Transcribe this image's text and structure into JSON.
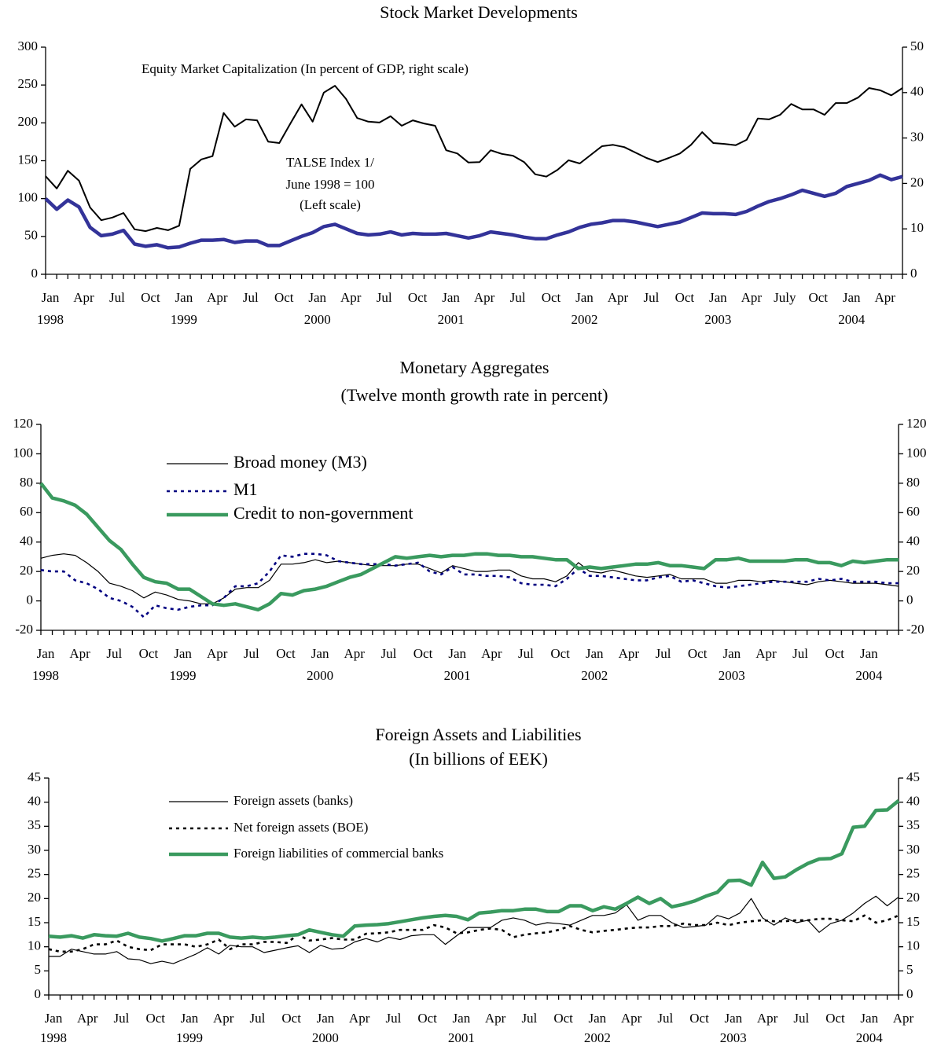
{
  "chart_data": [
    {
      "type": "line",
      "title": "Stock Market Developments",
      "annotations": [
        "Equity Market Capitalization (In percent of GDP, right scale)",
        "TALSE Index  1/",
        "June 1998 = 100",
        "(Left scale)"
      ],
      "categories": [
        "Jan",
        null,
        null,
        "Apr",
        null,
        null,
        "Jul",
        null,
        null,
        "Oct",
        null,
        null,
        "Jan",
        null,
        null,
        "Apr",
        null,
        null,
        "Jul",
        null,
        null,
        "Oct",
        null,
        null,
        "Jan",
        null,
        null,
        "Apr",
        null,
        null,
        "Jul",
        null,
        null,
        "Oct",
        null,
        null,
        "Jan",
        null,
        null,
        "Apr",
        null,
        null,
        "Jul",
        null,
        null,
        "Oct",
        null,
        null,
        "Jan",
        null,
        null,
        "Apr",
        null,
        null,
        "Jul",
        null,
        null,
        "Oct",
        null,
        null,
        "Jan",
        null,
        null,
        "Apr",
        null,
        null,
        "July",
        null,
        null,
        "Oct",
        null,
        null,
        "Jan",
        null,
        null,
        "Apr",
        null,
        null
      ],
      "category_years": [
        "1998",
        null,
        null,
        null,
        null,
        null,
        null,
        null,
        null,
        null,
        null,
        null,
        "1999",
        null,
        null,
        null,
        null,
        null,
        null,
        null,
        null,
        null,
        null,
        null,
        "2000",
        null,
        null,
        null,
        null,
        null,
        null,
        null,
        null,
        null,
        null,
        null,
        "2001",
        null,
        null,
        null,
        null,
        null,
        null,
        null,
        null,
        null,
        null,
        null,
        "2002",
        null,
        null,
        null,
        null,
        null,
        null,
        null,
        null,
        null,
        null,
        null,
        "2003",
        null,
        null,
        null,
        null,
        null,
        null,
        null,
        null,
        null,
        null,
        null,
        "2004",
        null,
        null,
        null,
        null,
        null
      ],
      "series": [
        {
          "color": "#000000",
          "style": "medium",
          "axis": "y2",
          "values": [
            21.6,
            18.9,
            22.8,
            20.6,
            14.7,
            11.9,
            12.5,
            13.5,
            9.9,
            9.5,
            10.2,
            9.7,
            10.7,
            23.2,
            25.3,
            26,
            35.5,
            32.5,
            34.1,
            33.9,
            29.2,
            28.9,
            33.2,
            37.4,
            33.6,
            40,
            41.5,
            38.6,
            34.4,
            33.6,
            33.4,
            34.8,
            32.7,
            33.9,
            33.2,
            32.7,
            27.3,
            26.6,
            24.6,
            24.7,
            27.3,
            26.5,
            26.1,
            24.7,
            22,
            21.5,
            23,
            25.1,
            24.4,
            26.3,
            28.2,
            28.5,
            28,
            26.8,
            25.6,
            24.7,
            25.6,
            26.6,
            28.5,
            31.3,
            28.9,
            28.7,
            28.4,
            29.6,
            34.3,
            34.1,
            35.1,
            37.5,
            36.3,
            36.3,
            35.1,
            37.7,
            37.7,
            38.9,
            41,
            40.5,
            39.4,
            41
          ]
        },
        {
          "color": "#333399",
          "style": "thick",
          "values": [
            100,
            86,
            98,
            89,
            62,
            51,
            53,
            58,
            40,
            37,
            39,
            35,
            36,
            41,
            45,
            45,
            46,
            42,
            44,
            44,
            38,
            38,
            44,
            50,
            55,
            63,
            66,
            60,
            54,
            52,
            53,
            56,
            52,
            54,
            53,
            53,
            54,
            51,
            48,
            51,
            56,
            54,
            52,
            49,
            47,
            47,
            52,
            56,
            62,
            66,
            68,
            71,
            71,
            69,
            66,
            63,
            66,
            69,
            75,
            81,
            80,
            80,
            79,
            83,
            90,
            96,
            100,
            105,
            111,
            107,
            103,
            107,
            116,
            120,
            124,
            131,
            125,
            129
          ]
        }
      ],
      "ylim": [
        0,
        300
      ],
      "yticks": [
        0,
        50,
        100,
        150,
        200,
        250,
        300
      ],
      "y2lim": [
        0,
        50
      ],
      "y2ticks": [
        0,
        10,
        20,
        30,
        40,
        50
      ],
      "grid": false
    },
    {
      "type": "line",
      "title": "Monetary Aggregates",
      "subtitle": "(Twelve month growth rate in percent)",
      "categories": [
        "Jan",
        null,
        null,
        "Apr",
        null,
        null,
        "Jul",
        null,
        null,
        "Oct",
        null,
        null,
        "Jan",
        null,
        null,
        "Apr",
        null,
        null,
        "Jul",
        null,
        null,
        "Oct",
        null,
        null,
        "Jan",
        null,
        null,
        "Apr",
        null,
        null,
        "Jul",
        null,
        null,
        "Oct",
        null,
        null,
        "Jan",
        null,
        null,
        "Apr",
        null,
        null,
        "Jul",
        null,
        null,
        "Oct",
        null,
        null,
        "Jan",
        null,
        null,
        "Apr",
        null,
        null,
        "Jul",
        null,
        null,
        "Oct",
        null,
        null,
        "Jan",
        null,
        null,
        "Apr",
        null,
        null,
        "Jul",
        null,
        null,
        "Oct",
        null,
        null,
        "Jan",
        null,
        null,
        null
      ],
      "category_years": [
        "1998",
        null,
        null,
        null,
        null,
        null,
        null,
        null,
        null,
        null,
        null,
        null,
        "1999",
        null,
        null,
        null,
        null,
        null,
        null,
        null,
        null,
        null,
        null,
        null,
        "2000",
        null,
        null,
        null,
        null,
        null,
        null,
        null,
        null,
        null,
        null,
        null,
        "2001",
        null,
        null,
        null,
        null,
        null,
        null,
        null,
        null,
        null,
        null,
        null,
        "2002",
        null,
        null,
        null,
        null,
        null,
        null,
        null,
        null,
        null,
        null,
        null,
        "2003",
        null,
        null,
        null,
        null,
        null,
        null,
        null,
        null,
        null,
        null,
        null,
        "2004",
        null,
        null,
        null
      ],
      "series": [
        {
          "name": "Broad money (M3)",
          "color": "#000000",
          "style": "thin",
          "values": [
            29,
            31,
            32,
            31,
            26,
            20,
            12,
            10,
            7,
            2,
            6,
            4,
            1,
            0,
            -2,
            -2,
            2,
            8,
            9,
            9,
            14,
            25,
            25,
            26,
            28,
            26,
            27,
            26,
            25,
            24,
            24,
            24,
            25,
            25,
            22,
            19,
            24,
            22,
            20,
            20,
            21,
            21,
            17,
            15,
            15,
            13,
            17,
            26,
            20,
            19,
            21,
            19,
            17,
            16,
            17,
            18,
            15,
            15,
            15,
            12,
            12,
            14,
            14,
            13,
            14,
            13,
            12,
            11,
            13,
            14,
            13,
            12,
            12,
            12,
            11,
            10
          ]
        },
        {
          "name": "M1",
          "color": "#000080",
          "style": "dotted",
          "values": [
            21,
            20,
            20,
            14,
            12,
            8,
            2,
            0,
            -4,
            -11,
            -3,
            -5,
            -6,
            -4,
            -3,
            -3,
            2,
            10,
            10,
            12,
            20,
            31,
            30,
            32,
            32,
            31,
            27,
            26,
            25,
            25,
            25,
            24,
            25,
            26,
            20,
            18,
            23,
            18,
            18,
            17,
            17,
            16,
            12,
            11,
            11,
            10,
            15,
            22,
            17,
            17,
            16,
            15,
            14,
            14,
            16,
            17,
            13,
            14,
            12,
            10,
            9,
            10,
            11,
            12,
            13,
            13,
            13,
            13,
            15,
            14,
            15,
            13,
            13,
            13,
            12,
            12
          ]
        },
        {
          "name": "Credit to non-government",
          "color": "#3a9a5f",
          "style": "thick",
          "values": [
            80,
            70,
            68,
            65,
            59,
            50,
            41,
            35,
            25,
            16,
            13,
            12,
            8,
            8,
            3,
            -2,
            -3,
            -2,
            -4,
            -6,
            -2,
            5,
            4,
            7,
            8,
            10,
            13,
            16,
            18,
            22,
            26,
            30,
            29,
            30,
            31,
            30,
            31,
            31,
            32,
            32,
            31,
            31,
            30,
            30,
            29,
            28,
            28,
            22,
            23,
            22,
            23,
            24,
            25,
            25,
            26,
            24,
            24,
            23,
            22,
            28,
            28,
            29,
            27,
            27,
            27,
            27,
            28,
            28,
            26,
            26,
            24,
            27,
            26,
            27,
            28,
            28
          ]
        }
      ],
      "ylim": [
        -20,
        120
      ],
      "yticks": [
        -20,
        0,
        20,
        40,
        60,
        80,
        100,
        120
      ],
      "y2lim": [
        -20,
        120
      ],
      "y2ticks": [
        -20,
        0,
        20,
        40,
        60,
        80,
        100,
        120
      ],
      "grid": false
    },
    {
      "type": "line",
      "title": "Foreign Assets and Liabilities",
      "subtitle": "(In billions of EEK)",
      "categories": [
        "Jan",
        null,
        null,
        "Apr",
        null,
        null,
        "Jul",
        null,
        null,
        "Oct",
        null,
        null,
        "Jan",
        null,
        null,
        "Apr",
        null,
        null,
        "Jul",
        null,
        null,
        "Oct",
        null,
        null,
        "Jan",
        null,
        null,
        "Apr",
        null,
        null,
        "Jul",
        null,
        null,
        "Oct",
        null,
        null,
        "Jan",
        null,
        null,
        "Apr",
        null,
        null,
        "Jul",
        null,
        null,
        "Oct",
        null,
        null,
        "Jan",
        null,
        null,
        "Apr",
        null,
        null,
        "Jul",
        null,
        null,
        "Oct",
        null,
        null,
        "Jan",
        null,
        null,
        "Apr",
        null,
        null,
        "Jul",
        null,
        null,
        "Oct",
        null,
        null,
        "Jan",
        null,
        null,
        "Apr"
      ],
      "category_years": [
        "1998",
        null,
        null,
        null,
        null,
        null,
        null,
        null,
        null,
        null,
        null,
        null,
        "1999",
        null,
        null,
        null,
        null,
        null,
        null,
        null,
        null,
        null,
        null,
        null,
        "2000",
        null,
        null,
        null,
        null,
        null,
        null,
        null,
        null,
        null,
        null,
        null,
        "2001",
        null,
        null,
        null,
        null,
        null,
        null,
        null,
        null,
        null,
        null,
        null,
        "2002",
        null,
        null,
        null,
        null,
        null,
        null,
        null,
        null,
        null,
        null,
        null,
        "2003",
        null,
        null,
        null,
        null,
        null,
        null,
        null,
        null,
        null,
        null,
        null,
        "2004",
        null,
        null,
        null
      ],
      "series": [
        {
          "name": "Foreign assets (banks)",
          "color": "#000000",
          "style": "thin",
          "values": [
            8,
            8,
            9.5,
            9,
            8.5,
            8.5,
            9,
            7.5,
            7.3,
            6.5,
            7,
            6.5,
            7.5,
            8.5,
            9.8,
            8.5,
            10.3,
            10,
            10,
            8.8,
            9.3,
            9.8,
            10.2,
            8.8,
            10.3,
            9.5,
            9.7,
            11,
            11.7,
            11,
            12,
            11.5,
            12.3,
            12.5,
            12.5,
            10.5,
            12.3,
            14,
            14,
            14,
            15.5,
            16,
            15.5,
            14.5,
            15,
            14.8,
            14.5,
            15.5,
            16.5,
            16.5,
            17,
            18.7,
            15.5,
            16.5,
            16.5,
            15,
            14,
            14.2,
            14.5,
            16.5,
            15.8,
            17,
            20,
            16,
            14.5,
            16,
            15,
            15.5,
            13,
            14.8,
            15.5,
            17,
            19,
            20.5,
            18.5,
            20.3
          ]
        },
        {
          "name": "Net foreign assets (BOE)",
          "color": "#000000",
          "style": "dotted",
          "values": [
            9.5,
            9,
            9,
            9.5,
            10.5,
            10.5,
            11.3,
            10,
            9.5,
            9.3,
            10.5,
            10.5,
            10.5,
            10,
            10.5,
            11.5,
            9.5,
            10.5,
            10.5,
            11,
            11,
            10.8,
            12.5,
            11.3,
            11.5,
            11.8,
            11.5,
            11.5,
            12.7,
            12.8,
            13,
            13.5,
            13.5,
            13.5,
            14.5,
            14,
            12.8,
            13,
            13.5,
            13.8,
            13.5,
            12,
            12.5,
            12.8,
            13,
            13.5,
            14.3,
            13.5,
            13,
            13.3,
            13.5,
            13.8,
            14,
            14,
            14.3,
            14.3,
            14.8,
            14.5,
            14.5,
            15,
            14.5,
            15,
            15.3,
            15.5,
            15.3,
            15.3,
            15.5,
            15.5,
            15.8,
            15.8,
            15.5,
            15.3,
            16.5,
            15,
            15.5,
            16.5
          ]
        },
        {
          "name": "Foreign liabilities of commercial banks",
          "color": "#3a9a5f",
          "style": "thick",
          "values": [
            12.2,
            12,
            12.3,
            11.8,
            12.5,
            12.3,
            12.2,
            12.8,
            12,
            11.7,
            11.2,
            11.7,
            12.3,
            12.3,
            12.8,
            12.8,
            12,
            11.8,
            12,
            11.8,
            12,
            12.3,
            12.5,
            13.5,
            13,
            12.5,
            12.2,
            14.3,
            14.5,
            14.6,
            14.8,
            15.2,
            15.6,
            16,
            16.3,
            16.5,
            16.3,
            15.6,
            17,
            17.2,
            17.5,
            17.5,
            17.8,
            17.8,
            17.3,
            17.3,
            18.5,
            18.5,
            17.5,
            18.3,
            17.8,
            19,
            20.3,
            19,
            20,
            18.3,
            18.8,
            19.5,
            20.5,
            21.3,
            23.7,
            23.8,
            22.8,
            27.5,
            24.2,
            24.5,
            26,
            27.3,
            28.2,
            28.3,
            29.3,
            34.8,
            35,
            38.3,
            38.4,
            40.3
          ]
        }
      ],
      "ylim": [
        0,
        45
      ],
      "yticks": [
        0,
        5,
        10,
        15,
        20,
        25,
        30,
        35,
        40,
        45
      ],
      "y2lim": [
        0,
        45
      ],
      "y2ticks": [
        0,
        5,
        10,
        15,
        20,
        25,
        30,
        35,
        40,
        45
      ],
      "grid": false
    }
  ]
}
